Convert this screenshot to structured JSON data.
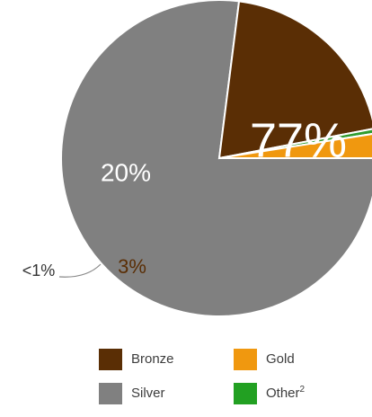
{
  "chart_data": {
    "type": "pie",
    "slices": [
      {
        "name": "Silver",
        "value": 77,
        "label": "77%",
        "color": "#808080",
        "label_color": "#ffffff"
      },
      {
        "name": "Bronze",
        "value": 20,
        "label": "20%",
        "color": "#5a2e05",
        "label_color": "#ffffff"
      },
      {
        "name": "Other",
        "value": 0.5,
        "label": "<1%",
        "color": "#2e9c2e",
        "label_color": "#333333"
      },
      {
        "name": "Gold",
        "value": 2.5,
        "label": "3%",
        "color": "#f0980f",
        "label_color": "#5a2e05"
      }
    ],
    "legend": [
      {
        "name": "Bronze",
        "label": "Bronze",
        "color": "#5a2e05",
        "superscript": ""
      },
      {
        "name": "Gold",
        "label": "Gold",
        "color": "#f0980f",
        "superscript": ""
      },
      {
        "name": "Silver",
        "label": "Silver",
        "color": "#808080",
        "superscript": ""
      },
      {
        "name": "Other",
        "label": "Other",
        "color": "#22a022",
        "superscript": "2"
      }
    ]
  }
}
